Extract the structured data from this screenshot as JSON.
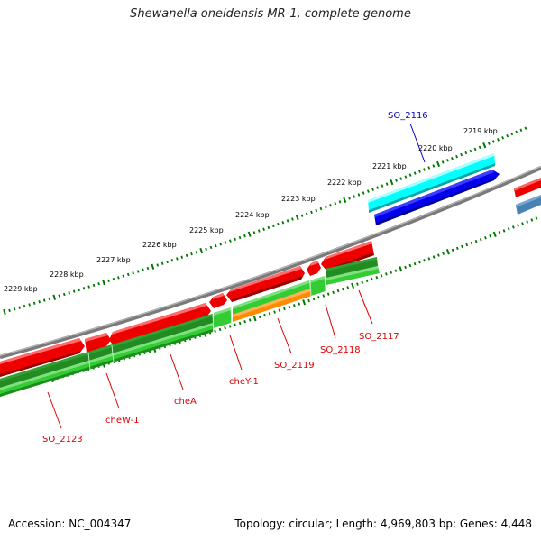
{
  "title": "Shewanella oneidensis MR-1, complete genome",
  "footer": {
    "accession": "Accession: NC_004347",
    "summary": "Topology: circular; Length: 4,969,803 bp; Genes: 4,448"
  },
  "colors": {
    "backbone": "#808080",
    "ticks": "#007700",
    "reverse_strand_gene": "#ee0000",
    "forward_strand_gene": "#00aa00",
    "orf_cyan": "#00ffff",
    "orf_blue": "#0000ee",
    "orf_steel": "#4682b4",
    "highlight_orange": "#ff8c00",
    "label_red": "#dd0000",
    "label_blue": "#0000cc"
  },
  "scale_labels": [
    "2219 kbp",
    "2220 kbp",
    "2221 kbp",
    "2222 kbp",
    "2223 kbp",
    "2224 kbp",
    "2225 kbp",
    "2226 kbp",
    "2227 kbp",
    "2228 kbp",
    "2229 kbp"
  ],
  "gene_labels": [
    {
      "name": "SO_2116",
      "color": "blue"
    },
    {
      "name": "SO_2117",
      "color": "red"
    },
    {
      "name": "SO_2118",
      "color": "red"
    },
    {
      "name": "SO_2119",
      "color": "red"
    },
    {
      "name": "cheY-1",
      "color": "red"
    },
    {
      "name": "cheA",
      "color": "red"
    },
    {
      "name": "cheW-1",
      "color": "red"
    },
    {
      "name": "SO_2123",
      "color": "red"
    }
  ]
}
